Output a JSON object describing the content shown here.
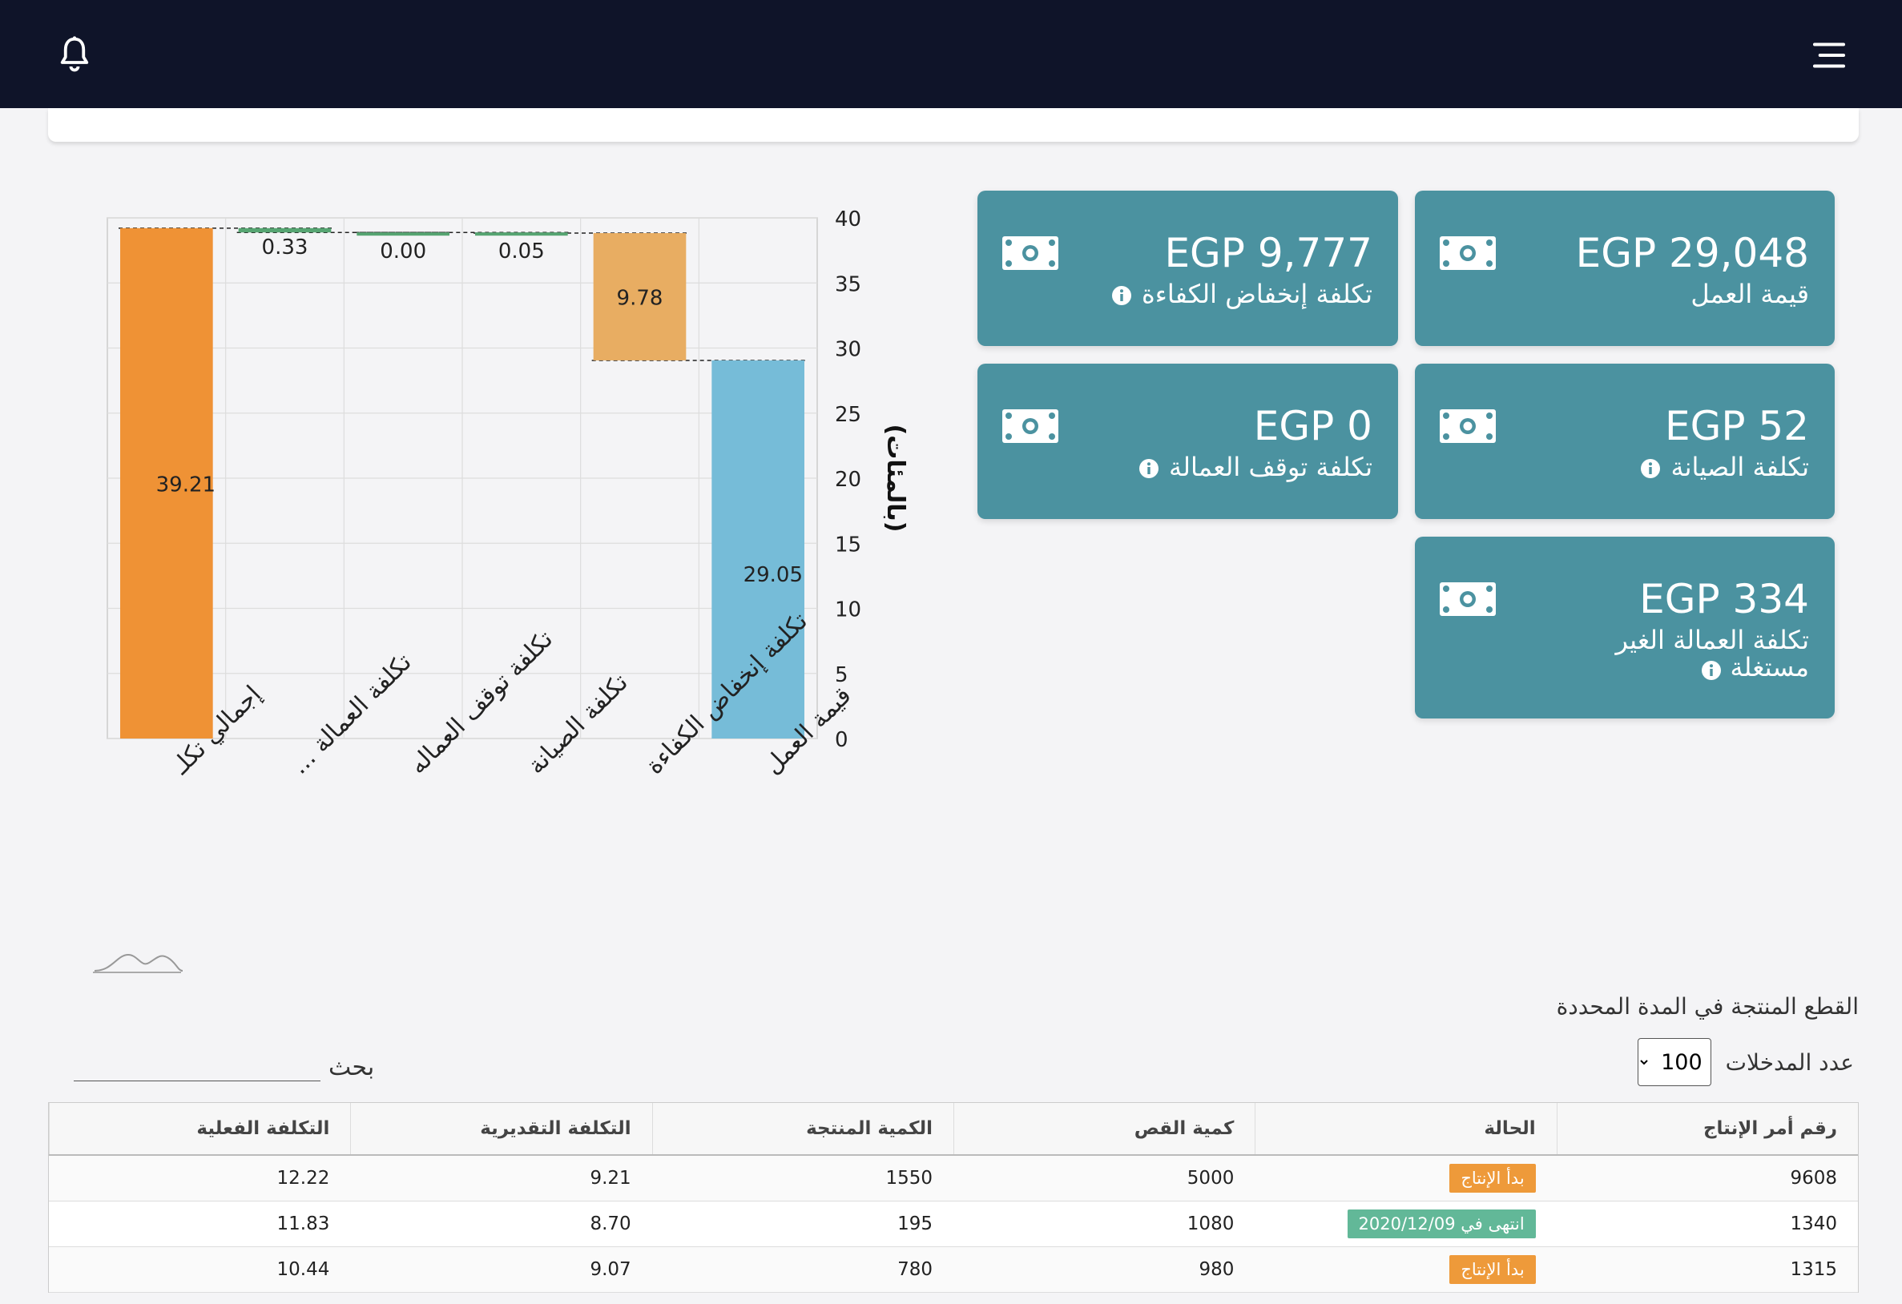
{
  "navbar": {
    "bell_icon": "bell-icon",
    "menu_icon": "hamburger-menu-icon"
  },
  "cards": {
    "labor_value": {
      "amount": "EGP 29,048",
      "label": "قيمة العمل"
    },
    "efficiency_loss": {
      "amount": "EGP 9,777",
      "label": "تكلفة إنخفاض الكفاءة",
      "info_icon": "info-icon"
    },
    "maintenance": {
      "amount": "EGP 52",
      "label": "تكلفة الصيانة",
      "info_icon": "info-icon"
    },
    "labor_downtime": {
      "amount": "EGP 0",
      "label": "تكلفة توقف العمالة",
      "info_icon": "info-icon"
    },
    "unused_labor": {
      "amount": "EGP 334",
      "label": "تكلفة العمالة الغير مستغلة",
      "info_icon": "info-icon"
    },
    "money_icon": "money-bill-icon",
    "card_color": "#4b92a0"
  },
  "chart_data": {
    "type": "bar",
    "subtype": "waterfall",
    "categories": [
      "إجمالي تكلـ",
      "تكلفة العمالة ...",
      "تكلفة توقف العماله",
      "تكلفة الصيانة",
      "تكلفة إنخفاض الكفاءة",
      "قيمة العمل"
    ],
    "values": [
      39.21,
      0.33,
      0.0,
      0.05,
      9.78,
      29.05
    ],
    "bar_ranges": [
      [
        0,
        39.21
      ],
      [
        38.88,
        39.21
      ],
      [
        38.88,
        38.88
      ],
      [
        38.83,
        38.88
      ],
      [
        29.05,
        38.83
      ],
      [
        0,
        29.05
      ]
    ],
    "data_labels": [
      "39.21",
      "0.33",
      "0.00",
      "0.05",
      "9.78",
      "29.05"
    ],
    "colors": [
      "#ef9235",
      "#56a572",
      "#56a572",
      "#56a572",
      "#e8ad62",
      "#76bcd8"
    ],
    "ylabel": "(بالمئات)",
    "ylim": [
      0,
      40
    ],
    "yticks": [
      "0",
      "5",
      "10",
      "15",
      "20",
      "25",
      "30",
      "35",
      "40"
    ],
    "y_axis_side": "right",
    "grid": true,
    "legend": "none"
  },
  "table_section": {
    "title": "القطع المنتجة في المدة المحددة",
    "entries_label": "عدد المدخلات",
    "entries_value": "100",
    "search_label": "بحث",
    "columns": [
      "رقم أمر الإنتاج",
      "الحالة",
      "كمية القص",
      "الكمية المنتجة",
      "التكلفة التقديرية",
      "التكلفة الفعلية"
    ],
    "rows": [
      {
        "order": "9608",
        "status": "بدأ الإنتاج",
        "status_type": "started",
        "cut_qty": "5000",
        "produced_qty": "1550",
        "estimated_cost": "9.21",
        "actual_cost": "12.22"
      },
      {
        "order": "1340",
        "status": "انتهى في 2020/12/09",
        "status_type": "done",
        "cut_qty": "1080",
        "produced_qty": "195",
        "estimated_cost": "8.70",
        "actual_cost": "11.83"
      },
      {
        "order": "1315",
        "status": "بدأ الإنتاج",
        "status_type": "started",
        "cut_qty": "980",
        "produced_qty": "780",
        "estimated_cost": "9.07",
        "actual_cost": "10.44"
      }
    ]
  }
}
